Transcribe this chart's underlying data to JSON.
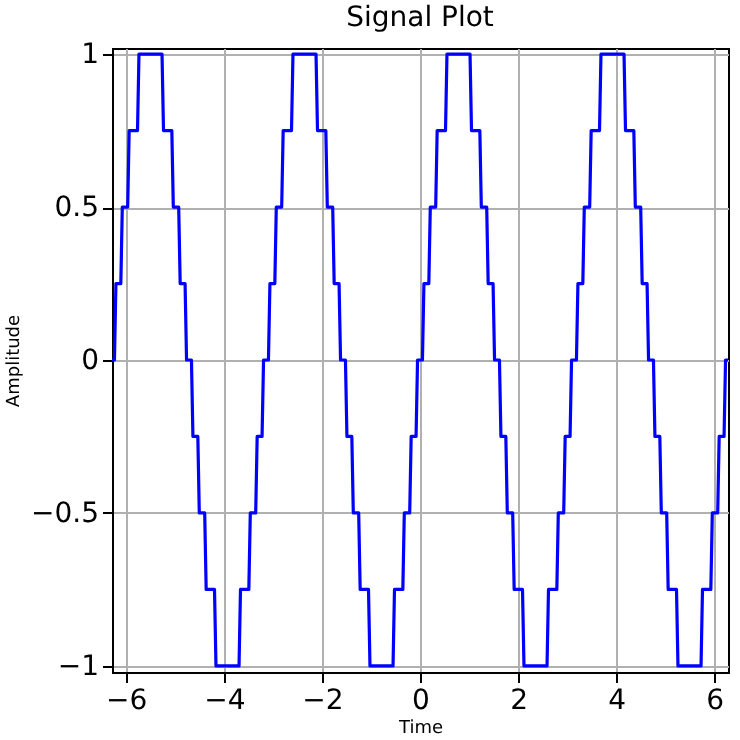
{
  "chart_data": {
    "type": "line",
    "title": "Signal Plot",
    "xlabel": "Time",
    "ylabel": "Amplitude",
    "xlim": [
      -6.28,
      6.28
    ],
    "ylim": [
      -1.02,
      1.02
    ],
    "xticks": [
      {
        "value": -6,
        "label": "−6"
      },
      {
        "value": -4,
        "label": "−4"
      },
      {
        "value": -2,
        "label": "−2"
      },
      0,
      2,
      4,
      6
    ],
    "yticks": [
      {
        "value": -1,
        "label": "−1"
      },
      {
        "value": -0.5,
        "label": "−0.5"
      },
      0,
      0.5,
      1
    ],
    "grid": true,
    "marker": "none",
    "line_style": "solid",
    "series": [
      {
        "color": "#0000ff",
        "x": [
          -6.28,
          -6.23,
          -6.2,
          -6.1,
          -6.07,
          -5.96,
          -5.93,
          -5.76,
          -5.73,
          -5.26,
          -5.23,
          -5.06,
          -5.03,
          -4.92,
          -4.89,
          -4.79,
          -4.76,
          -4.66,
          -4.63,
          -4.53,
          -4.5,
          -4.39,
          -4.36,
          -4.19,
          -4.16,
          -3.69,
          -3.66,
          -3.49,
          -3.46,
          -3.35,
          -3.32,
          -3.22,
          -3.19,
          -3.09,
          -3.06,
          -2.96,
          -2.93,
          -2.82,
          -2.79,
          -2.62,
          -2.59,
          -2.12,
          -2.09,
          -1.92,
          -1.89,
          -1.78,
          -1.75,
          -1.65,
          -1.62,
          -1.52,
          -1.49,
          -1.39,
          -1.36,
          -1.25,
          -1.22,
          -1.05,
          -1.02,
          -0.55,
          -0.52,
          -0.35,
          -0.32,
          -0.21,
          -0.18,
          -0.08,
          -0.05,
          0.05,
          0.08,
          0.18,
          0.21,
          0.32,
          0.35,
          0.52,
          0.55,
          1.02,
          1.05,
          1.22,
          1.25,
          1.36,
          1.39,
          1.49,
          1.52,
          1.62,
          1.65,
          1.75,
          1.78,
          1.89,
          1.92,
          2.09,
          2.12,
          2.59,
          2.62,
          2.79,
          2.82,
          2.93,
          2.96,
          3.06,
          3.09,
          3.19,
          3.22,
          3.32,
          3.35,
          3.46,
          3.49,
          3.66,
          3.69,
          4.16,
          4.19,
          4.36,
          4.39,
          4.5,
          4.53,
          4.63,
          4.66,
          4.76,
          4.79,
          4.89,
          4.92,
          5.03,
          5.06,
          5.23,
          5.26,
          5.73,
          5.76,
          5.93,
          5.96,
          6.07,
          6.1,
          6.2,
          6.23,
          6.28
        ],
        "values": [
          0,
          0,
          0.25,
          0.25,
          0.5,
          0.5,
          0.75,
          0.75,
          1,
          1,
          0.75,
          0.75,
          0.5,
          0.5,
          0.25,
          0.25,
          0,
          0,
          -0.25,
          -0.25,
          -0.5,
          -0.5,
          -0.75,
          -0.75,
          -1,
          -1,
          -0.75,
          -0.75,
          -0.5,
          -0.5,
          -0.25,
          -0.25,
          0,
          0,
          0.25,
          0.25,
          0.5,
          0.5,
          0.75,
          0.75,
          1,
          1,
          0.75,
          0.75,
          0.5,
          0.5,
          0.25,
          0.25,
          0,
          0,
          -0.25,
          -0.25,
          -0.5,
          -0.5,
          -0.75,
          -0.75,
          -1,
          -1,
          -0.75,
          -0.75,
          -0.5,
          -0.5,
          -0.25,
          -0.25,
          0,
          0,
          0.25,
          0.25,
          0.5,
          0.5,
          0.75,
          0.75,
          1,
          1,
          0.75,
          0.75,
          0.5,
          0.5,
          0.25,
          0.25,
          0,
          0,
          -0.25,
          -0.25,
          -0.5,
          -0.5,
          -0.75,
          -0.75,
          -1,
          -1,
          -0.75,
          -0.75,
          -0.5,
          -0.5,
          -0.25,
          -0.25,
          0,
          0,
          0.25,
          0.25,
          0.5,
          0.5,
          0.75,
          0.75,
          1,
          1,
          0.75,
          0.75,
          0.5,
          0.5,
          0.25,
          0.25,
          0,
          0,
          -0.25,
          -0.25,
          -0.5,
          -0.5,
          -0.75,
          -0.75,
          -1,
          -1,
          -0.75,
          -0.75,
          -0.5,
          -0.5,
          -0.25,
          -0.25,
          0,
          0
        ]
      }
    ]
  }
}
